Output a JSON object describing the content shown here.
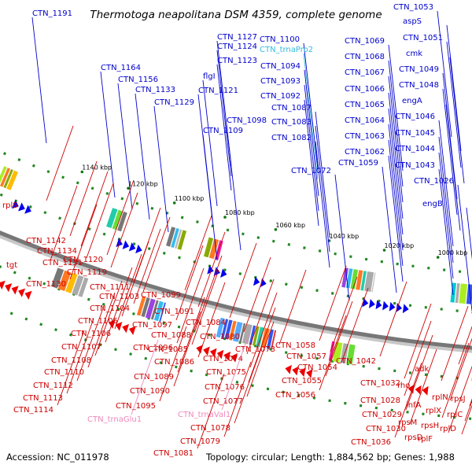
{
  "title": "Thermotoga neapolitana DSM 4359, complete genome",
  "footer": {
    "accession": "Accession: NC_011978",
    "summary": "Topology: circular; Length: 1,884,562 bp; Genes: 1,988"
  },
  "colors": {
    "forward_label": "#0000cc",
    "reverse_label": "#cc0000",
    "trna_forward": "#33bbdd",
    "trna_reverse": "#ee88bb",
    "backbone": "#777777",
    "tick": "#117711"
  },
  "ticks": [
    "1140 kbp",
    "1120 kbp",
    "1100 kbp",
    "1080 kbp",
    "1060 kbp",
    "1040 kbp",
    "1020 kbp",
    "1000 kbp"
  ],
  "labels_forward": [
    "CTN_1191",
    "CTN_1164",
    "CTN_1156",
    "CTN_1133",
    "CTN_1129",
    "CTN_1127",
    "CTN_1124",
    "CTN_1123",
    "flgI",
    "CTN_1121",
    "CTN_1109",
    "CTN_1100",
    "CTN_trnaPro2",
    "CTN_1094",
    "CTN_1093",
    "CTN_1092",
    "CTN_1098",
    "CTN_1087",
    "CTN_1083",
    "CTN_1082",
    "CTN_1072",
    "CTN_1069",
    "CTN_1068",
    "CTN_1067",
    "CTN_1066",
    "CTN_1065",
    "CTN_1064",
    "CTN_1063",
    "CTN_1062",
    "CTN_1059",
    "CTN_1053",
    "aspS",
    "CTN_1051",
    "cmk",
    "CTN_1049",
    "CTN_1048",
    "engA",
    "CTN_1046",
    "CTN_1045",
    "CTN_1044",
    "CTN_1043",
    "CTN_1026",
    "engB"
  ],
  "labels_reverse": [
    "rplS",
    "CTN_1142",
    "CTN_1134",
    "tgt",
    "CTN_1131",
    "CTN_1120",
    "CTN_1130",
    "CTN_1119",
    "CTN_1111",
    "CTN_1103",
    "CTN_1104",
    "CTN_1105",
    "CTN_1106",
    "CTN_1107",
    "CTN_1108",
    "CTN_1110",
    "CTN_1112",
    "CTN_1113",
    "CTN_1114",
    "CTN_1099",
    "CTN_1091",
    "CTN_1097",
    "CTN_1088",
    "CTN_1096",
    "CTN_1085",
    "CTN_1086",
    "CTN_1089",
    "CTN_1090",
    "CTN_1095",
    "CTN_trnaGlu1",
    "CTN_1084",
    "CTN_1080",
    "CTN_1074",
    "CTN_1073",
    "CTN_1075",
    "CTN_1076",
    "CTN_1077",
    "CTN_trnaVal1",
    "CTN_1078",
    "CTN_1079",
    "CTN_1081",
    "CTN_1058",
    "CTN_1057",
    "CTN_1054",
    "CTN_1055",
    "CTN_1056",
    "CTN_1042",
    "CTN_1032",
    "CTN_1028",
    "CTN_1029",
    "CTN_1030",
    "CTN_1036",
    "rho",
    "adk",
    "infA",
    "rpsM",
    "rpsD",
    "rplN",
    "rplX",
    "rpsH",
    "rplF",
    "rpsJ",
    "rplC",
    "rplD"
  ]
}
